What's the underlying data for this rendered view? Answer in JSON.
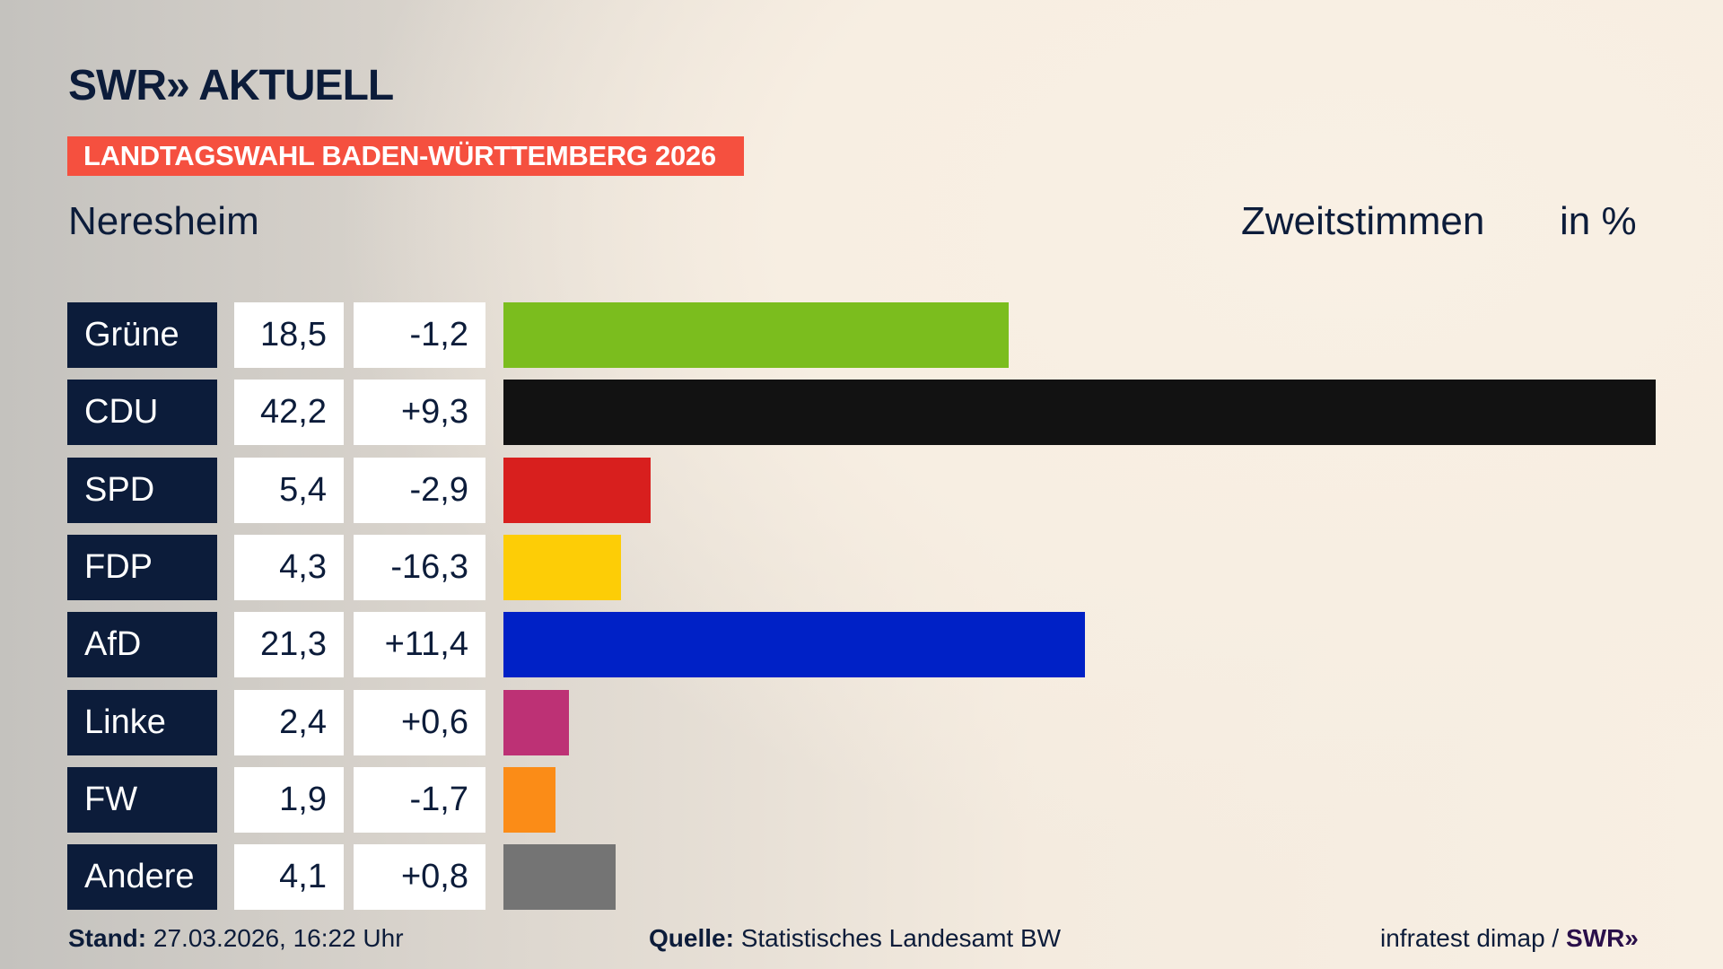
{
  "header": {
    "logo": "SWR» AKTUELL",
    "banner": "LANDTAGSWAHL BADEN-WÜRTTEMBERG 2026",
    "district": "Neresheim",
    "metric": "Zweitstimmen",
    "unit": "in %"
  },
  "chart_data": {
    "type": "bar",
    "orientation": "horizontal",
    "categories": [
      "Grüne",
      "CDU",
      "SPD",
      "FDP",
      "AfD",
      "Linke",
      "FW",
      "Andere"
    ],
    "values": [
      18.5,
      42.2,
      5.4,
      4.3,
      21.3,
      2.4,
      1.9,
      4.1
    ],
    "values_label": [
      "18,5",
      "42,2",
      "5,4",
      "4,3",
      "21,3",
      "2,4",
      "1,9",
      "4,1"
    ],
    "diff_label": [
      "-1,2",
      "+9,3",
      "-2,9",
      "-16,3",
      "+11,4",
      "+0,6",
      "-1,7",
      "+0,8"
    ],
    "colors": [
      "#7bbd1e",
      "#121212",
      "#d81f1e",
      "#fdcd06",
      "#0021c6",
      "#bd3175",
      "#fb8c17",
      "#747474"
    ],
    "xlim": [
      0,
      42.2
    ],
    "grid": false
  },
  "footer": {
    "stand_label": "Stand:",
    "stand": "27.03.2026, 16:22 Uhr",
    "source_label": "Quelle:",
    "source": "Statistisches Landesamt BW",
    "credit": "infratest dimap /",
    "credit_logo": "SWR»"
  }
}
